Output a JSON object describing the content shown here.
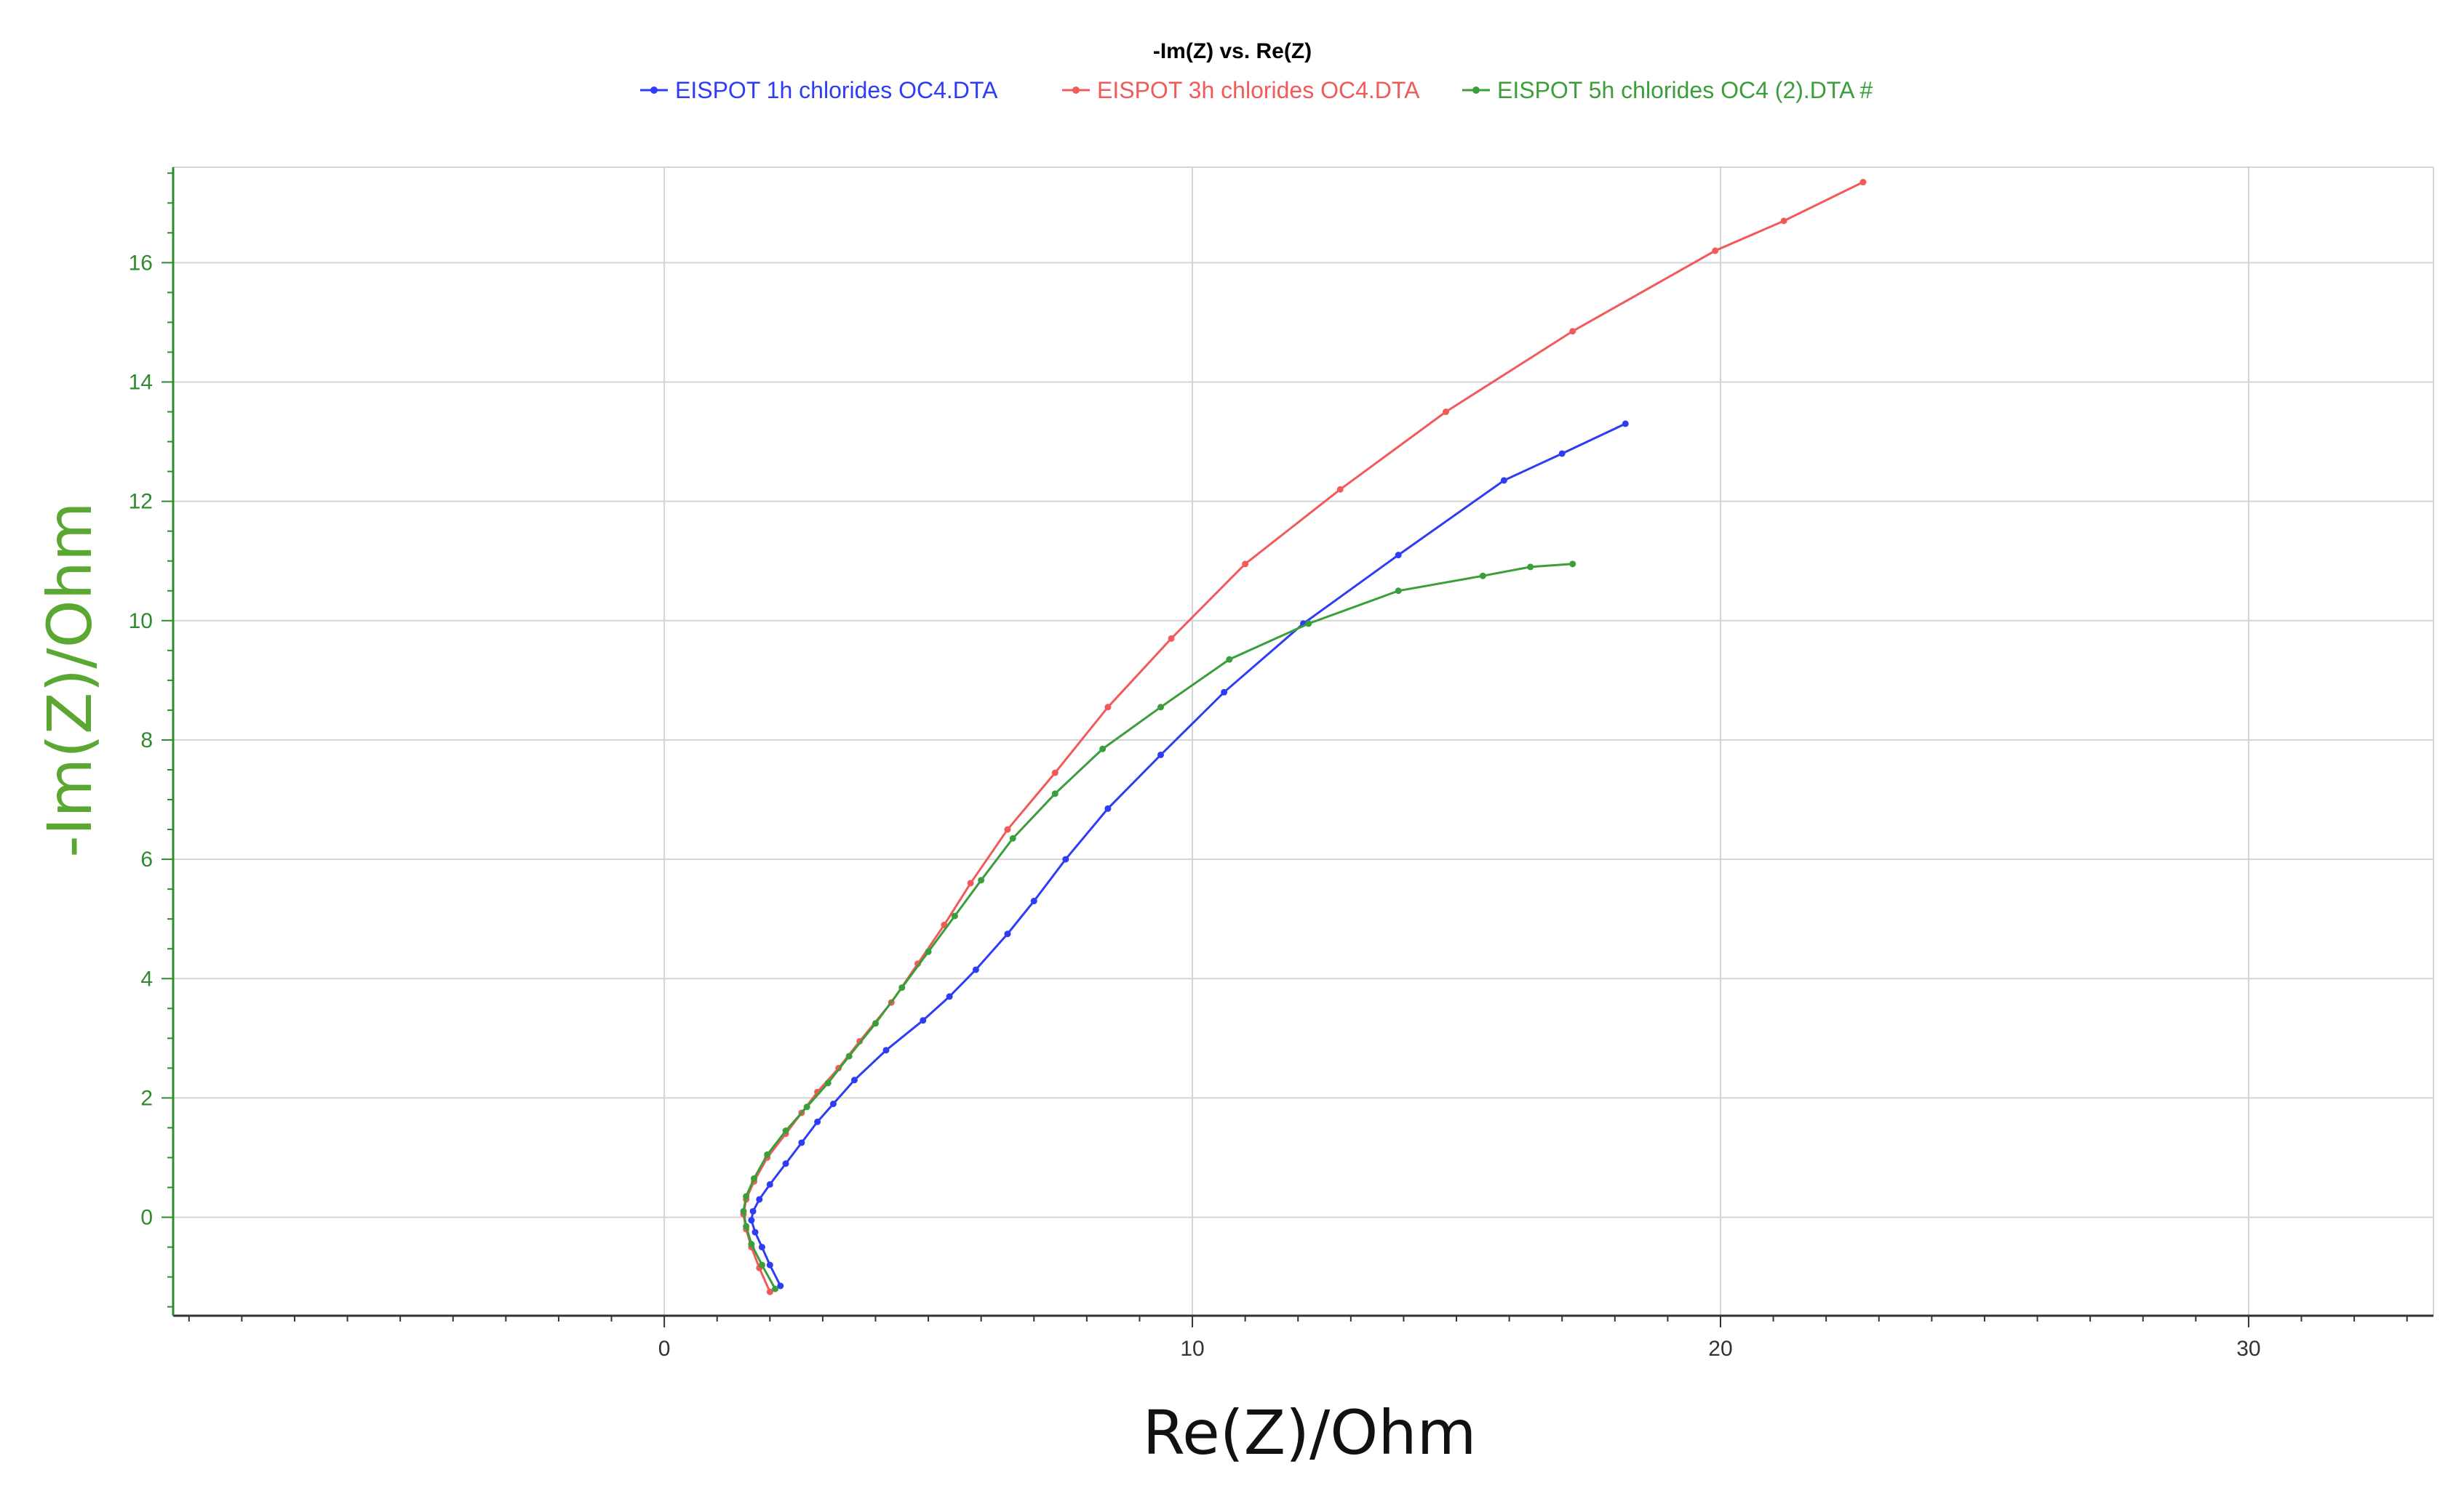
{
  "chart_data": {
    "type": "line",
    "title": "-Im(Z) vs. Re(Z)",
    "xlabel": "Re(Z)/Ohm",
    "ylabel": "-Im(Z)/Ohm",
    "xlim": [
      -9.3,
      33.5
    ],
    "ylim": [
      -1.65,
      17.6
    ],
    "xticks": [
      0,
      10,
      20,
      30
    ],
    "yticks": [
      0,
      2,
      4,
      6,
      8,
      10,
      12,
      14,
      16
    ],
    "grid": true,
    "legend_position": "top",
    "series": [
      {
        "name": "EISPOT 1h chlorides OC4.DTA",
        "color": "#2f3cf5",
        "x": [
          2.2,
          2.0,
          1.85,
          1.72,
          1.65,
          1.68,
          1.8,
          2.0,
          2.3,
          2.6,
          2.9,
          3.2,
          3.6,
          4.2,
          4.9,
          5.4,
          5.9,
          6.5,
          7.0,
          7.6,
          8.4,
          9.4,
          10.6,
          12.1,
          13.9,
          15.9,
          17.0,
          18.2
        ],
        "y": [
          -1.15,
          -0.8,
          -0.5,
          -0.25,
          -0.05,
          0.1,
          0.3,
          0.55,
          0.9,
          1.25,
          1.6,
          1.9,
          2.3,
          2.8,
          3.3,
          3.7,
          4.15,
          4.75,
          5.3,
          6.0,
          6.85,
          7.75,
          8.8,
          9.95,
          11.1,
          12.35,
          12.8,
          13.3
        ]
      },
      {
        "name": "EISPOT 3h chlorides OC4.DTA",
        "color": "#f25a5a",
        "x": [
          2.0,
          1.8,
          1.65,
          1.55,
          1.5,
          1.55,
          1.7,
          1.95,
          2.3,
          2.6,
          2.9,
          3.3,
          3.7,
          4.3,
          4.8,
          5.3,
          5.8,
          6.5,
          7.4,
          8.4,
          9.6,
          11.0,
          12.8,
          14.8,
          17.2,
          19.9,
          21.2,
          22.7
        ],
        "y": [
          -1.25,
          -0.85,
          -0.5,
          -0.2,
          0.05,
          0.3,
          0.6,
          1.0,
          1.4,
          1.75,
          2.1,
          2.5,
          2.95,
          3.6,
          4.25,
          4.9,
          5.6,
          6.5,
          7.45,
          8.55,
          9.7,
          10.95,
          12.2,
          13.5,
          14.85,
          16.2,
          16.7,
          17.35
        ]
      },
      {
        "name": "EISPOT 5h chlorides OC4 (2).DTA #",
        "color": "#3a9e3a",
        "x": [
          2.1,
          1.85,
          1.65,
          1.55,
          1.5,
          1.55,
          1.7,
          1.95,
          2.3,
          2.7,
          3.1,
          3.5,
          4.0,
          4.5,
          5.0,
          5.5,
          6.0,
          6.6,
          7.4,
          8.3,
          9.4,
          10.7,
          12.2,
          13.9,
          15.5,
          16.4,
          17.2
        ],
        "y": [
          -1.2,
          -0.8,
          -0.45,
          -0.15,
          0.1,
          0.35,
          0.65,
          1.05,
          1.45,
          1.85,
          2.25,
          2.7,
          3.25,
          3.85,
          4.45,
          5.05,
          5.65,
          6.35,
          7.1,
          7.85,
          8.55,
          9.35,
          9.95,
          10.5,
          10.75,
          10.9,
          10.95
        ]
      }
    ]
  }
}
